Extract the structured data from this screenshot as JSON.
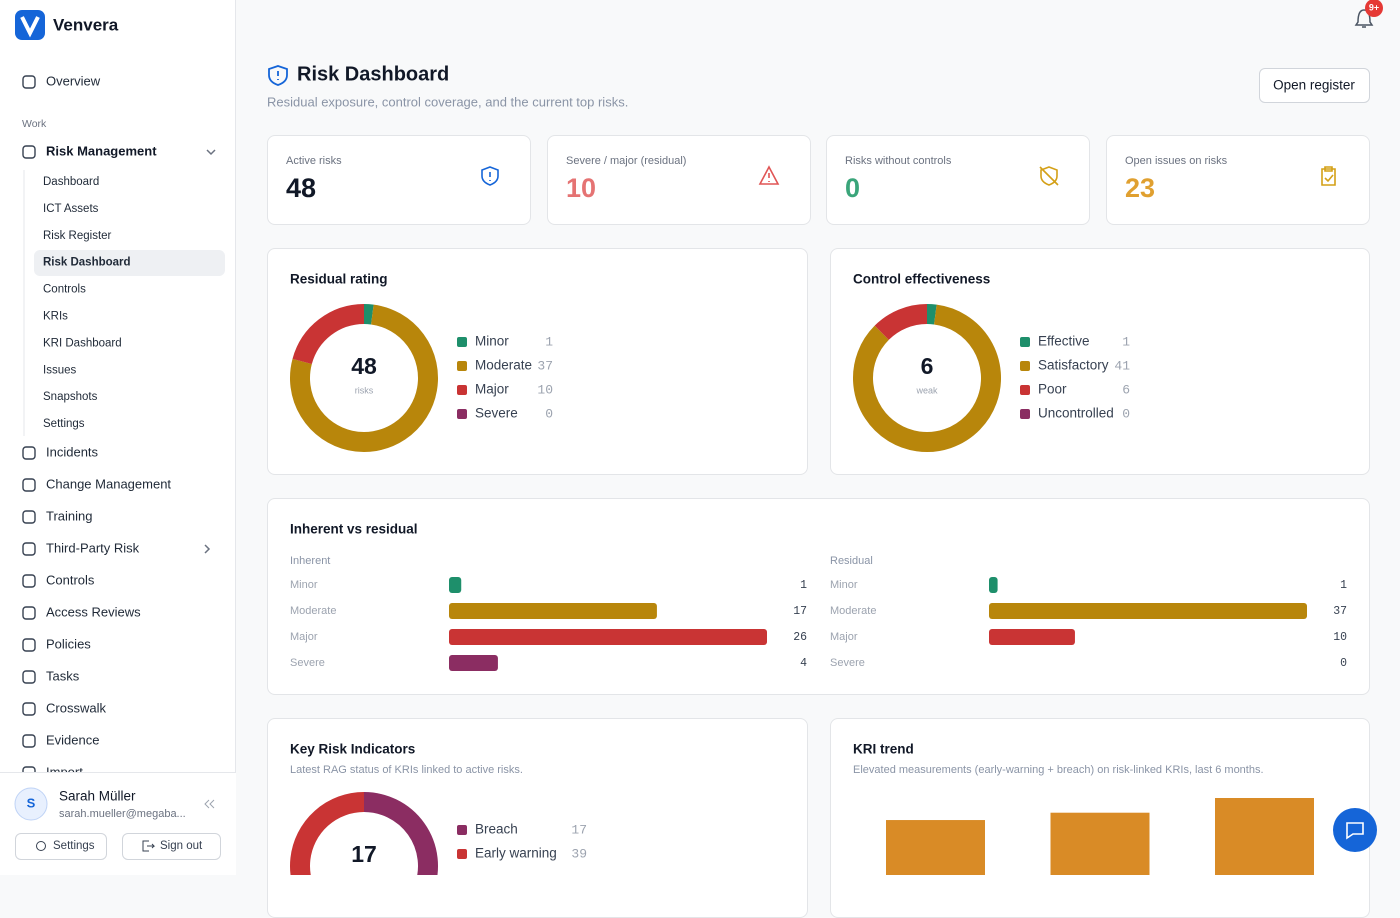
{
  "brand": "Venvera",
  "notifications": "9+",
  "nav": {
    "overview": "Overview",
    "section": "Work",
    "group": "Risk Management",
    "sub": [
      "Dashboard",
      "ICT Assets",
      "Risk Register",
      "Risk Dashboard",
      "Controls",
      "KRIs",
      "KRI Dashboard",
      "Issues",
      "Snapshots",
      "Settings"
    ],
    "items": [
      "Incidents",
      "Change Management",
      "Training",
      "Third-Party Risk",
      "Controls",
      "Access Reviews",
      "Policies",
      "Tasks",
      "Crosswalk",
      "Evidence",
      "Import"
    ]
  },
  "user": {
    "initial": "S",
    "name": "Sarah Müller",
    "email": "sarah.mueller@megaba...",
    "settings": "Settings",
    "sign_out": "Sign out"
  },
  "header": {
    "title": "Risk Dashboard",
    "subtitle": "Residual exposure, control coverage, and the current top risks.",
    "action": "Open register"
  },
  "stats": [
    {
      "label": "Active risks",
      "value": 48,
      "color": "#111827"
    },
    {
      "label": "Severe / major (residual)",
      "value": 10,
      "color": "#e57373"
    },
    {
      "label": "Risks without controls",
      "value": 0,
      "color": "#3aa57a"
    },
    {
      "label": "Open issues on risks",
      "value": 23,
      "color": "#e0a030"
    }
  ],
  "chart_data": [
    {
      "type": "donut",
      "title": "Residual rating",
      "center_value": 48,
      "center_label": "risks",
      "categories": [
        "Minor",
        "Moderate",
        "Major",
        "Severe"
      ],
      "values": [
        1,
        37,
        10,
        0
      ],
      "colors": [
        "#1e8f6b",
        "#b8860b",
        "#c93434",
        "#8b2d62"
      ]
    },
    {
      "type": "donut",
      "title": "Control effectiveness",
      "center_value": 6,
      "center_label": "weak",
      "categories": [
        "Effective",
        "Satisfactory",
        "Poor",
        "Uncontrolled"
      ],
      "values": [
        1,
        41,
        6,
        0
      ],
      "colors": [
        "#1e8f6b",
        "#b8860b",
        "#c93434",
        "#8b2d62"
      ]
    },
    {
      "type": "hbar",
      "title": "Inherent vs residual",
      "categories": [
        "Minor",
        "Moderate",
        "Major",
        "Severe"
      ],
      "colors": [
        "#1e8f6b",
        "#b8860b",
        "#c93434",
        "#8b2d62"
      ],
      "series": [
        {
          "name": "Inherent",
          "values": [
            1,
            17,
            26,
            4
          ]
        },
        {
          "name": "Residual",
          "values": [
            1,
            37,
            10,
            0
          ]
        }
      ]
    },
    {
      "type": "donut",
      "title": "Key Risk Indicators",
      "subtitle": "Latest RAG status of KRIs linked to active risks.",
      "center_value": 17,
      "categories": [
        "Breach",
        "Early warning"
      ],
      "values": [
        17,
        39
      ],
      "colors": [
        "#8b2d62",
        "#c93434"
      ]
    },
    {
      "type": "bar",
      "title": "KRI trend",
      "subtitle": "Elevated measurements (early-warning + breach) on risk-linked KRIs, last 6 months.",
      "values": [
        17,
        18,
        20
      ],
      "color": "#d98b26",
      "ylim": [
        0,
        20
      ]
    }
  ]
}
